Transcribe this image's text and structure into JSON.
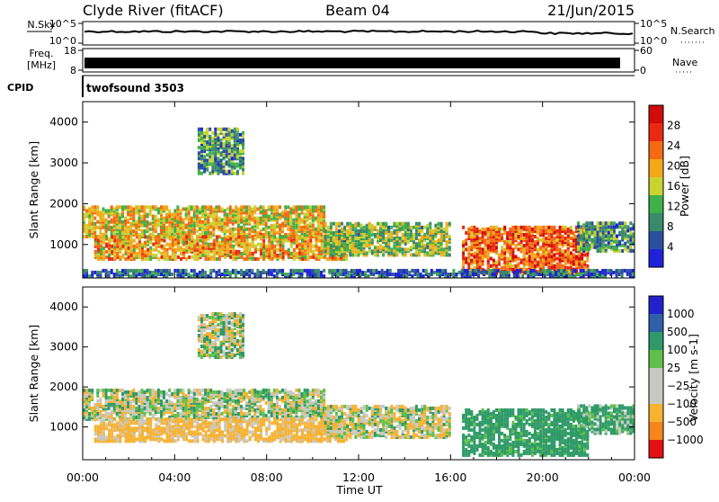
{
  "header": {
    "station": "Clyde River (fitACF)",
    "beam": "Beam 04",
    "date": "21/Jun/2015"
  },
  "nsky_panel": {
    "left_label": "N.Sky",
    "left_ticks": [
      "10^5",
      "10^0"
    ],
    "right_label": "N.Search",
    "right_ticks": [
      "10^5",
      "10^0"
    ]
  },
  "freq_panel": {
    "left_label_1": "Freq.",
    "left_label_2": "[MHz]",
    "left_ticks": [
      "18",
      "8"
    ],
    "right_label": "Nave",
    "right_ticks": [
      "60",
      "0"
    ]
  },
  "cpid_panel": {
    "label": "CPID",
    "program": "twofsound 3503"
  },
  "x_axis": {
    "label": "Time UT",
    "ticks": [
      "00:00",
      "04:00",
      "08:00",
      "12:00",
      "16:00",
      "20:00",
      "00:00"
    ]
  },
  "colors": {
    "power": [
      "#1f22d8",
      "#2b4fa0",
      "#3a8a6a",
      "#3fb04a",
      "#c9d332",
      "#f3a81a",
      "#f46a12",
      "#e82a12",
      "#d10a0a"
    ],
    "velocity": [
      "#e31111",
      "#f5861c",
      "#f7b232",
      "#c8c8c2",
      "#c8c8c2",
      "#5ec04a",
      "#2f9a68",
      "#2e5fa8",
      "#2222cc"
    ]
  },
  "chart_data": [
    {
      "type": "heatmap",
      "title": "Power",
      "xlabel": "Time UT",
      "ylabel": "Slant Range [km]",
      "x_range_hours": [
        0,
        24
      ],
      "ylim": [
        180,
        4500
      ],
      "y_ticks": [
        "4000",
        "3000",
        "2000",
        "1000"
      ],
      "colorbar": {
        "label": "Power [dB]",
        "ticks": [
          "28",
          "24",
          "20",
          "16",
          "12",
          "8",
          "4"
        ],
        "range": [
          0,
          32
        ]
      },
      "regions": [
        {
          "t0": 0.0,
          "t1": 10.5,
          "r0": 1150,
          "r1": 1900,
          "value": 18
        },
        {
          "t0": 0.5,
          "t1": 11.5,
          "r0": 600,
          "r1": 1150,
          "value": 20
        },
        {
          "t0": 10.5,
          "t1": 16.0,
          "r0": 700,
          "r1": 1500,
          "value": 14
        },
        {
          "t0": 16.5,
          "t1": 22.0,
          "r0": 250,
          "r1": 1400,
          "value": 24
        },
        {
          "t0": 21.5,
          "t1": 24.0,
          "r0": 800,
          "r1": 1500,
          "value": 10
        },
        {
          "t0": 5.0,
          "t1": 7.0,
          "r0": 2700,
          "r1": 3800,
          "value": 10
        },
        {
          "t0": 0.0,
          "t1": 24.0,
          "r0": 180,
          "r1": 320,
          "value": 6
        }
      ]
    },
    {
      "type": "heatmap",
      "title": "Velocity",
      "xlabel": "Time UT",
      "ylabel": "Slant Range [km]",
      "x_range_hours": [
        0,
        24
      ],
      "ylim": [
        180,
        4500
      ],
      "y_ticks": [
        "4000",
        "3000",
        "2000",
        "1000"
      ],
      "colorbar": {
        "label": "Velocity [m s-1]",
        "ticks": [
          "1000",
          "500",
          "100",
          "25",
          "−25",
          "−100",
          "−500",
          "−1000"
        ]
      },
      "regions": [
        {
          "t0": 0.0,
          "t1": 10.5,
          "r0": 1150,
          "r1": 1900,
          "value": 0
        },
        {
          "t0": 0.5,
          "t1": 11.5,
          "r0": 600,
          "r1": 1150,
          "value": -200
        },
        {
          "t0": 10.5,
          "t1": 16.0,
          "r0": 700,
          "r1": 1500,
          "value": -50
        },
        {
          "t0": 16.5,
          "t1": 22.0,
          "r0": 250,
          "r1": 1400,
          "value": 250
        },
        {
          "t0": 21.5,
          "t1": 24.0,
          "r0": 800,
          "r1": 1500,
          "value": 150
        },
        {
          "t0": 5.0,
          "t1": 7.0,
          "r0": 2700,
          "r1": 3800,
          "value": 0
        }
      ]
    }
  ]
}
